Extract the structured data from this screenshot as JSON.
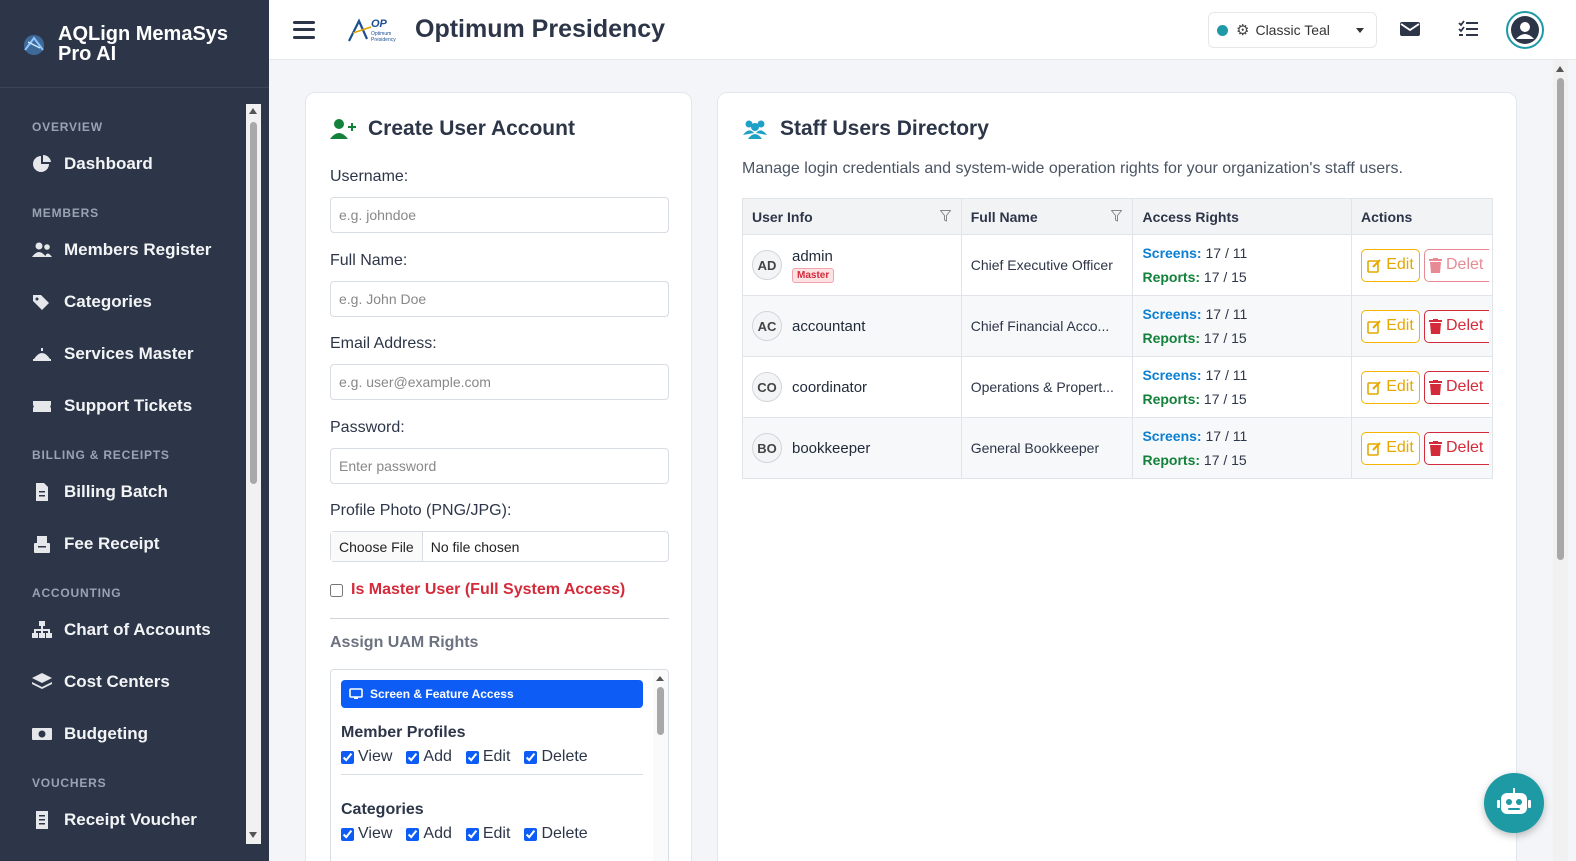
{
  "brand": {
    "name": "AQLign MemaSys Pro AI"
  },
  "sidebar": {
    "sections": [
      {
        "title": "OVERVIEW",
        "items": [
          {
            "label": "Dashboard",
            "icon": "pie-chart-icon"
          }
        ]
      },
      {
        "title": "MEMBERS",
        "items": [
          {
            "label": "Members Register",
            "icon": "users-icon"
          },
          {
            "label": "Categories",
            "icon": "tags-icon"
          },
          {
            "label": "Services Master",
            "icon": "service-icon"
          },
          {
            "label": "Support Tickets",
            "icon": "ticket-icon"
          }
        ]
      },
      {
        "title": "BILLING & RECEIPTS",
        "items": [
          {
            "label": "Billing Batch",
            "icon": "invoice-icon"
          },
          {
            "label": "Fee Receipt",
            "icon": "receipt-icon"
          }
        ]
      },
      {
        "title": "ACCOUNTING",
        "items": [
          {
            "label": "Chart of Accounts",
            "icon": "sitemap-icon"
          },
          {
            "label": "Cost Centers",
            "icon": "layers-icon"
          },
          {
            "label": "Budgeting",
            "icon": "money-icon"
          }
        ]
      },
      {
        "title": "VOUCHERS",
        "items": [
          {
            "label": "Receipt Voucher",
            "icon": "document-icon"
          }
        ]
      }
    ]
  },
  "header": {
    "title": "Optimum Presidency",
    "logo_text": "OP",
    "logo_subtext": "Optimum Presidency",
    "theme": "Classic Teal",
    "theme_color": "#1e9aa5"
  },
  "create_form": {
    "title": "Create User Account",
    "username_label": "Username:",
    "username_placeholder": "e.g. johndoe",
    "fullname_label": "Full Name:",
    "fullname_placeholder": "e.g. John Doe",
    "email_label": "Email Address:",
    "email_placeholder": "e.g. user@example.com",
    "password_label": "Password:",
    "password_placeholder": "Enter password",
    "photo_label": "Profile Photo (PNG/JPG):",
    "file_button": "Choose File",
    "file_status": "No file chosen",
    "master_label": "Is Master User (Full System Access)",
    "uam_title": "Assign UAM Rights",
    "uam_banner": "Screen & Feature Access",
    "perm_groups": [
      {
        "title": "Member Profiles",
        "options": [
          "View",
          "Add",
          "Edit",
          "Delete"
        ]
      },
      {
        "title": "Categories",
        "options": [
          "View",
          "Add",
          "Edit",
          "Delete"
        ]
      }
    ]
  },
  "directory": {
    "title": "Staff Users Directory",
    "description": "Manage login credentials and system-wide operation rights for your organization's staff users.",
    "columns": [
      "User Info",
      "Full Name",
      "Access Rights",
      "Actions"
    ],
    "screens_label": "Screens:",
    "reports_label": "Reports:",
    "edit_label": "Edit",
    "delete_label": "Delet",
    "master_badge": "Master",
    "rows": [
      {
        "initials": "AD",
        "username": "admin",
        "master": true,
        "full_name": "Chief Executive Officer",
        "screens": "17 / 11",
        "reports": "17 / 15"
      },
      {
        "initials": "AC",
        "username": "accountant",
        "master": false,
        "full_name": "Chief Financial Acco...",
        "screens": "17 / 11",
        "reports": "17 / 15"
      },
      {
        "initials": "CO",
        "username": "coordinator",
        "master": false,
        "full_name": "Operations & Propert...",
        "screens": "17 / 11",
        "reports": "17 / 15"
      },
      {
        "initials": "BO",
        "username": "bookkeeper",
        "master": false,
        "full_name": "General Bookkeeper",
        "screens": "17 / 11",
        "reports": "17 / 15"
      }
    ]
  }
}
